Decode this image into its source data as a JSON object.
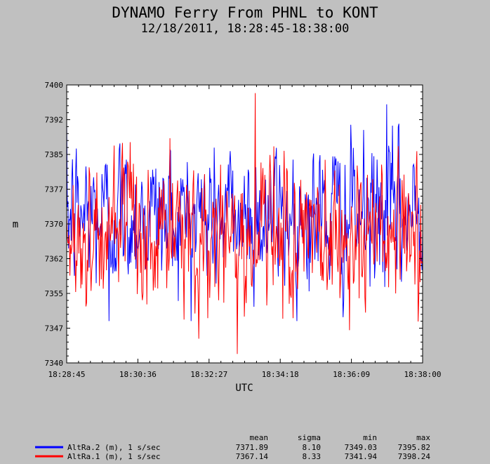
{
  "chart_data": {
    "type": "line",
    "title": "DYNAMO Ferry From PHNL to KONT",
    "subtitle": "12/18/2011, 18:28:45-18:38:00",
    "xlabel": "UTC",
    "ylabel": "m",
    "x_ticks": [
      "18:28:45",
      "18:30:36",
      "18:32:27",
      "18:34:18",
      "18:36:09",
      "18:38:00"
    ],
    "y_ticks": [
      "7340",
      "7347",
      "7355",
      "7362",
      "7370",
      "7377",
      "7385",
      "7392",
      "7400"
    ],
    "ylim": [
      7340,
      7400
    ],
    "xlim_seconds": 555,
    "sample_interval_seconds": 1,
    "stats_headers": [
      "mean",
      "sigma",
      "min",
      "max"
    ],
    "series": [
      {
        "name": "AltRa.2 (m), 1 s/sec",
        "color": "#0000ff",
        "mean": 7371.89,
        "sigma": 8.1,
        "min": 7349.03,
        "max": 7395.82,
        "stats": [
          "7371.89",
          "8.10",
          "7349.03",
          "7395.82"
        ]
      },
      {
        "name": "AltRa.1 (m), 1 s/sec",
        "color": "#ff0000",
        "mean": 7367.14,
        "sigma": 8.33,
        "min": 7341.94,
        "max": 7398.24,
        "stats": [
          "7367.14",
          "8.33",
          "7341.94",
          "7398.24"
        ]
      }
    ]
  }
}
